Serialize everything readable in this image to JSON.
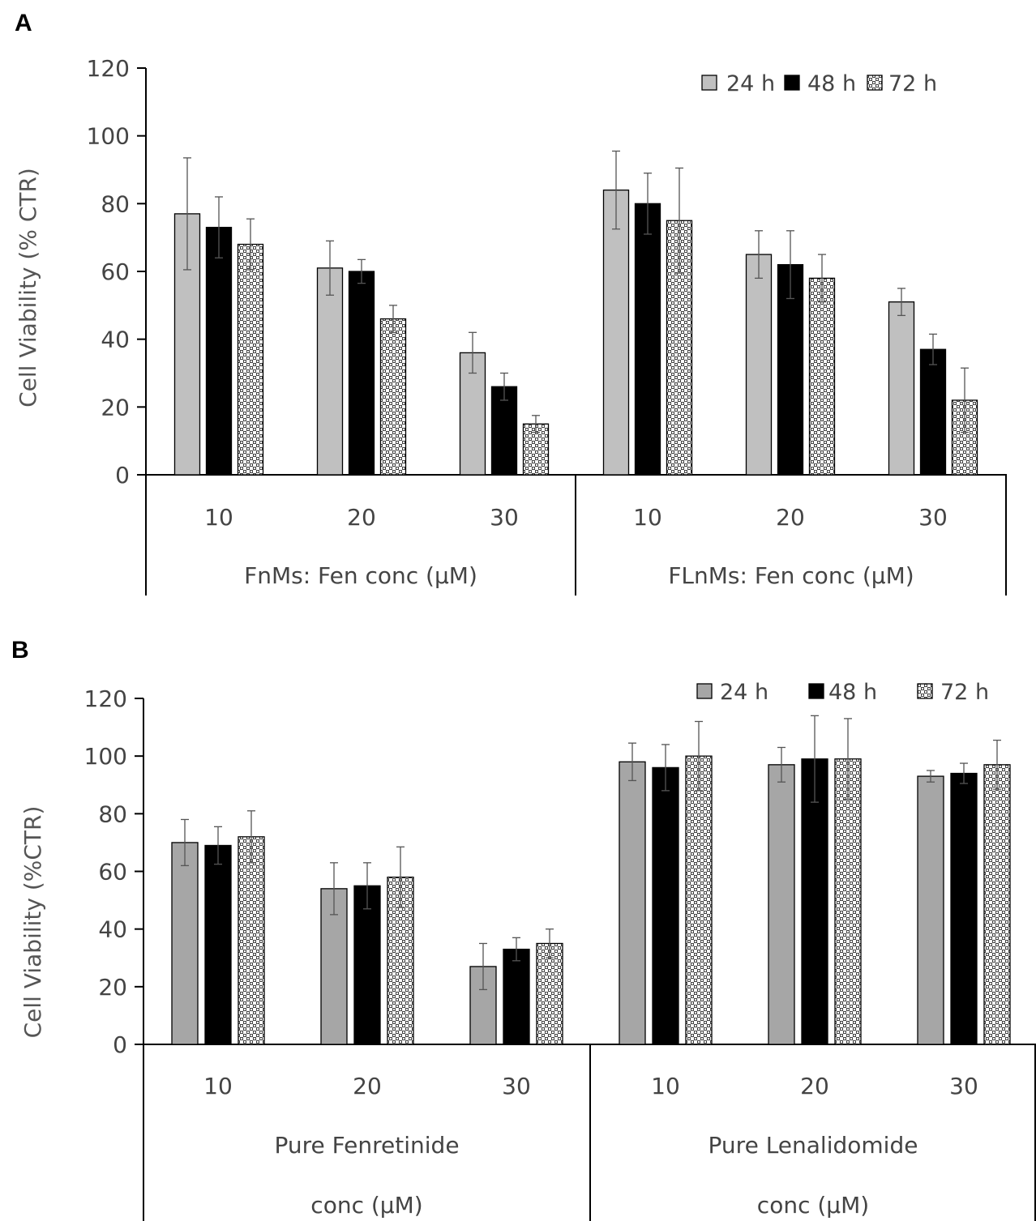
{
  "chart_data": [
    {
      "panel": "A",
      "type": "bar",
      "ylabel": "Cell Viability (% CTR)",
      "ylim": [
        0,
        120
      ],
      "yticks": [
        0,
        20,
        40,
        60,
        80,
        100,
        120
      ],
      "legend_position": "top-right",
      "groups": [
        {
          "label": "FnMs:  Fen conc (μM)",
          "categories": [
            "10",
            "20",
            "30"
          ]
        },
        {
          "label": "FLnMs: Fen conc (μM)",
          "categories": [
            "10",
            "20",
            "30"
          ]
        }
      ],
      "series": [
        {
          "name": "24 h",
          "color": "#c0c0c0",
          "pattern": "solid",
          "values": [
            77,
            61,
            36,
            84,
            65,
            51
          ],
          "errors": [
            16.5,
            8,
            6,
            11.5,
            7,
            4
          ]
        },
        {
          "name": "48 h",
          "color": "#000000",
          "pattern": "solid",
          "values": [
            73,
            60,
            26,
            80,
            62,
            37
          ],
          "errors": [
            9,
            3.5,
            4,
            9,
            10,
            4.5
          ]
        },
        {
          "name": "72 h",
          "color": "#ffffff",
          "pattern": "checker",
          "values": [
            68,
            46,
            15,
            75,
            58,
            22
          ],
          "errors": [
            7.5,
            4,
            2.5,
            15.5,
            7,
            9.5
          ]
        }
      ]
    },
    {
      "panel": "B",
      "type": "bar",
      "ylabel": "Cell Viability (%CTR)",
      "ylim": [
        0,
        120
      ],
      "yticks": [
        0,
        20,
        40,
        60,
        80,
        100,
        120
      ],
      "legend_position": "top-right",
      "groups": [
        {
          "label_lines": [
            "Pure Fenretinide",
            "conc (μM)"
          ],
          "categories": [
            "10",
            "20",
            "30"
          ]
        },
        {
          "label_lines": [
            "Pure Lenalidomide",
            "conc (μM)"
          ],
          "categories": [
            "10",
            "20",
            "30"
          ]
        }
      ],
      "series": [
        {
          "name": "24 h",
          "color": "#a6a6a6",
          "pattern": "solid",
          "values": [
            70,
            54,
            27,
            98,
            97,
            93
          ],
          "errors": [
            8,
            9,
            8,
            6.5,
            6,
            2
          ]
        },
        {
          "name": "48 h",
          "color": "#000000",
          "pattern": "solid",
          "values": [
            69,
            55,
            33,
            96,
            99,
            94
          ],
          "errors": [
            6.5,
            8,
            4,
            8,
            15,
            3.5
          ]
        },
        {
          "name": "72 h",
          "color": "#ffffff",
          "pattern": "checker",
          "values": [
            72,
            58,
            35,
            100,
            99,
            97
          ],
          "errors": [
            9,
            10.5,
            5,
            12,
            14,
            8.5
          ]
        }
      ]
    }
  ]
}
